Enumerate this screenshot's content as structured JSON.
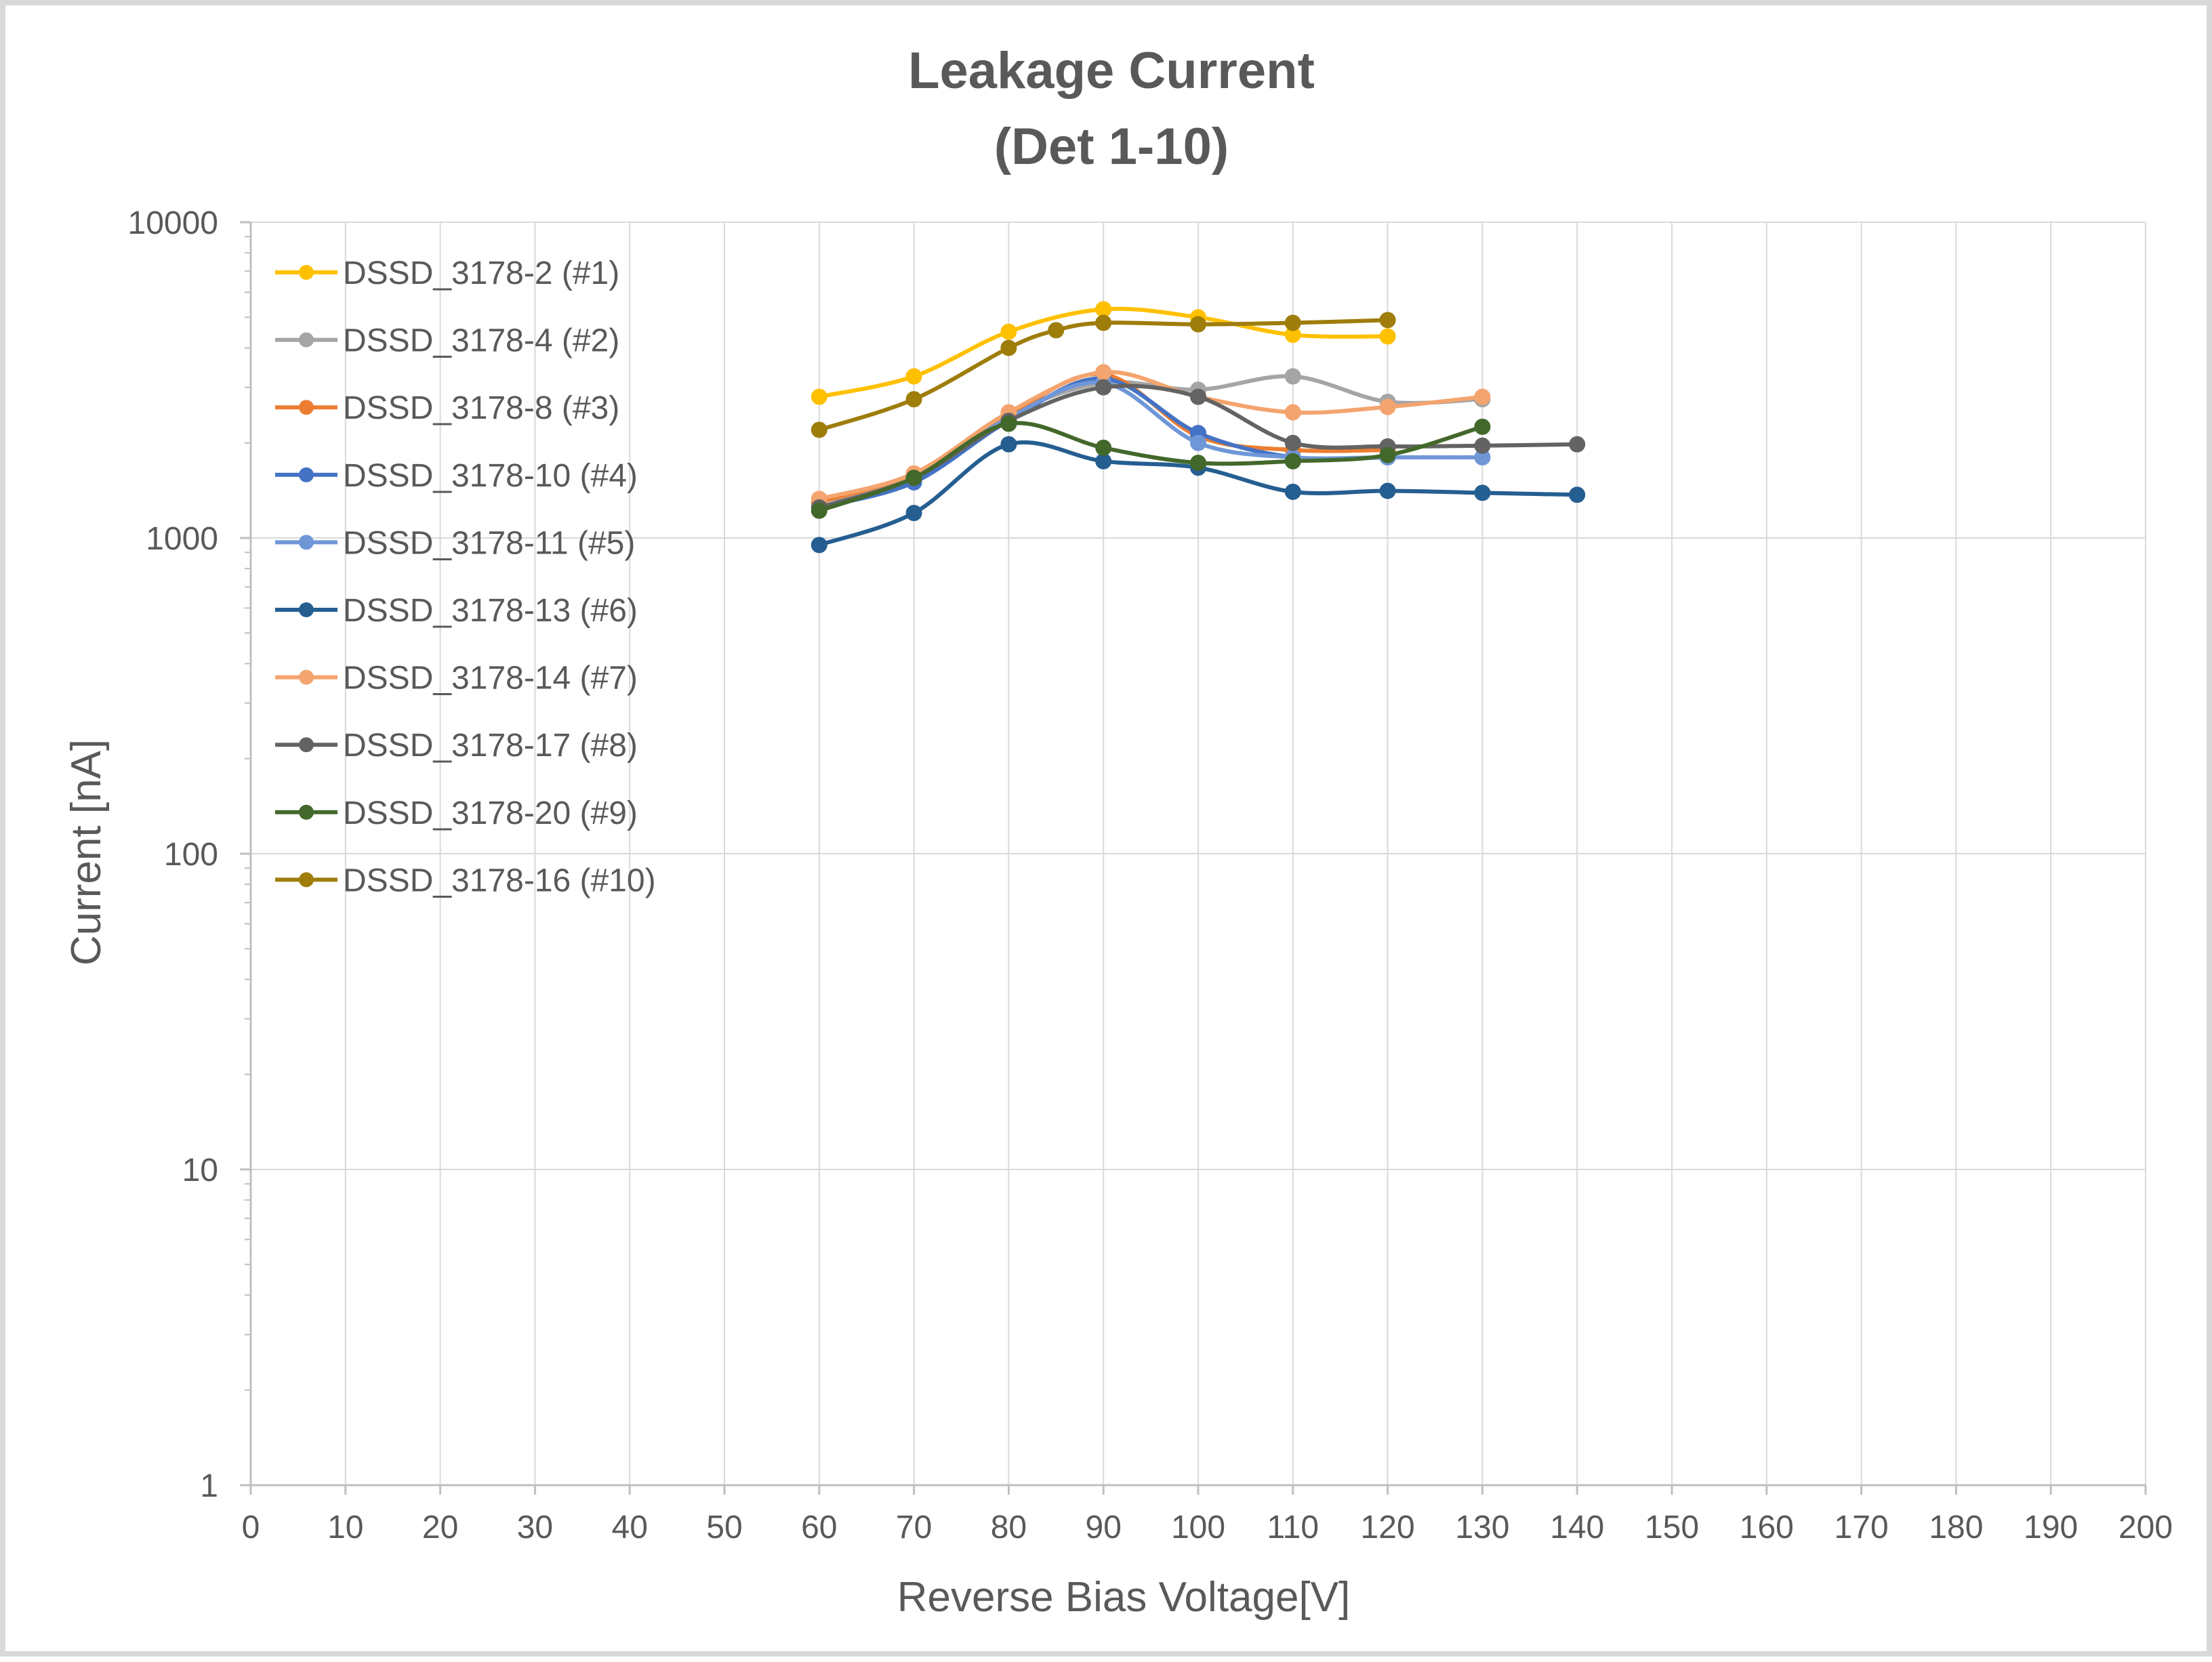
{
  "chart_data": {
    "type": "line",
    "title": "Leakage Current",
    "subtitle": "(Det 1-10)",
    "xlabel": "Reverse Bias Voltage[V]",
    "ylabel": "Current [nA]",
    "xlim": [
      0,
      200
    ],
    "ylim": [
      1,
      10000
    ],
    "y_scale": "log",
    "x_ticks": [
      "0",
      "10",
      "20",
      "30",
      "40",
      "50",
      "60",
      "70",
      "80",
      "90",
      "100",
      "110",
      "120",
      "130",
      "140",
      "150",
      "160",
      "170",
      "180",
      "190",
      "200"
    ],
    "y_ticks": [
      "1",
      "10",
      "100",
      "1000",
      "10000"
    ],
    "grid": true,
    "legend_position": "top-left",
    "series": [
      {
        "name": "DSSD_3178-2 (#1)",
        "color": "#ffc000",
        "x": [
          60,
          70,
          80,
          90,
          100,
          110,
          120
        ],
        "values": [
          2800,
          3250,
          4500,
          5300,
          5000,
          4400,
          4350
        ]
      },
      {
        "name": "DSSD_3178-4 (#2)",
        "color": "#a5a5a5",
        "x": [
          60,
          70,
          80,
          90,
          100,
          110,
          120,
          130
        ],
        "values": [
          1300,
          1550,
          2450,
          3100,
          2950,
          3250,
          2700,
          2750
        ]
      },
      {
        "name": "DSSD_3178-8 (#3)",
        "color": "#ed7d31",
        "x": [
          60,
          70,
          80,
          90,
          100,
          110,
          120
        ],
        "values": [
          1300,
          1600,
          2450,
          3300,
          2100,
          1900,
          1900
        ]
      },
      {
        "name": "DSSD_3178-10 (#4)",
        "color": "#4472c4",
        "x": [
          60,
          70,
          80,
          90,
          100,
          110,
          120
        ],
        "values": [
          1250,
          1500,
          2350,
          3200,
          2150,
          1800,
          1800
        ]
      },
      {
        "name": "DSSD_3178-11 (#5)",
        "color": "#6f97d8",
        "x": [
          60,
          70,
          80,
          90,
          100,
          110,
          120,
          130
        ],
        "values": [
          1250,
          1550,
          2400,
          3100,
          2000,
          1800,
          1800,
          1800
        ]
      },
      {
        "name": "DSSD_3178-13 (#6)",
        "color": "#255e91",
        "x": [
          60,
          70,
          80,
          90,
          100,
          110,
          120,
          130,
          140
        ],
        "values": [
          950,
          1200,
          1980,
          1750,
          1670,
          1400,
          1410,
          1390,
          1370
        ]
      },
      {
        "name": "DSSD_3178-14 (#7)",
        "color": "#f4a46e",
        "x": [
          60,
          70,
          80,
          90,
          100,
          110,
          120,
          130
        ],
        "values": [
          1330,
          1600,
          2500,
          3350,
          2800,
          2500,
          2600,
          2800
        ]
      },
      {
        "name": "DSSD_3178-17 (#8)",
        "color": "#636363",
        "x": [
          60,
          70,
          80,
          90,
          100,
          110,
          120,
          130,
          140
        ],
        "values": [
          1250,
          1550,
          2350,
          3000,
          2800,
          2000,
          1950,
          1960,
          1980
        ]
      },
      {
        "name": "DSSD_3178-20 (#9)",
        "color": "#43682b",
        "x": [
          60,
          70,
          80,
          90,
          100,
          110,
          120,
          130
        ],
        "values": [
          1220,
          1550,
          2300,
          1930,
          1730,
          1750,
          1830,
          2250
        ]
      },
      {
        "name": "DSSD_3178-16 (#10)",
        "color": "#9e7d0b",
        "x": [
          60,
          70,
          80,
          85,
          90,
          100,
          110,
          120
        ],
        "values": [
          2200,
          2750,
          4000,
          4550,
          4800,
          4750,
          4800,
          4900
        ]
      }
    ]
  }
}
